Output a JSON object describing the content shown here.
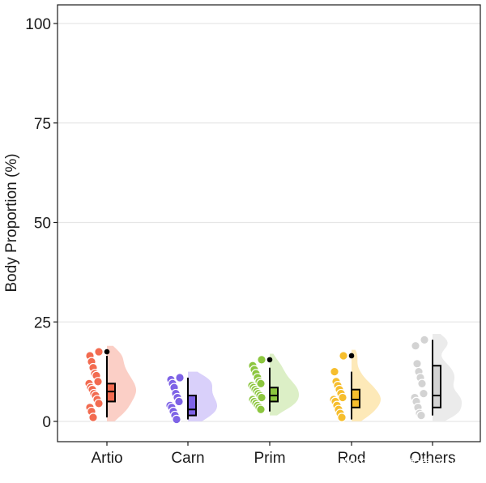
{
  "chart_data": {
    "type": "raincloud",
    "ylabel": "Body Proportion (%)",
    "xlabel": "",
    "title": "",
    "ylim": [
      0,
      100
    ],
    "yticks": [
      0,
      25,
      50,
      75,
      100
    ],
    "grid": "horizontal",
    "legend": "none",
    "categories": [
      "Artio",
      "Carn",
      "Prim",
      "Rod",
      "Others"
    ],
    "series": [
      {
        "category": "Artio",
        "color": "#F26B50",
        "fill": "#FBCFC6",
        "points": [
          17.5,
          16.5,
          15,
          13.5,
          12,
          11.5,
          10,
          9.5,
          8.5,
          8,
          7,
          6.5,
          5.5,
          4.5,
          3.5,
          2.5,
          1
        ],
        "box": {
          "min": 1,
          "q1": 5,
          "median": 7.5,
          "q3": 9.5,
          "max": 16.5
        },
        "outliers": [
          17.5
        ]
      },
      {
        "category": "Carn",
        "color": "#7E63E6",
        "fill": "#D9D0FA",
        "points": [
          11,
          10.5,
          9.5,
          8.5,
          7,
          6,
          5,
          4,
          3.5,
          2.5,
          1.5,
          0.5
        ],
        "box": {
          "min": 0.5,
          "q1": 1.5,
          "median": 3,
          "q3": 6.5,
          "max": 11
        },
        "outliers": []
      },
      {
        "category": "Prim",
        "color": "#8CC63F",
        "fill": "#DCEFC6",
        "points": [
          15.5,
          14,
          13,
          12,
          11,
          10,
          9.5,
          9,
          8.5,
          8,
          7.5,
          7,
          6.5,
          6,
          5.5,
          5,
          4.5,
          4,
          3.5,
          3
        ],
        "box": {
          "min": 2.5,
          "q1": 5,
          "median": 6.5,
          "q3": 8.5,
          "max": 13.5
        },
        "outliers": [
          15.5
        ]
      },
      {
        "category": "Rod",
        "color": "#F6BE2E",
        "fill": "#FDE9B8",
        "points": [
          16.5,
          12.5,
          10,
          9,
          8,
          7,
          6,
          5.5,
          5,
          4,
          3,
          2,
          1
        ],
        "box": {
          "min": 0.5,
          "q1": 3.5,
          "median": 5.5,
          "q3": 8,
          "max": 12.5
        },
        "outliers": [
          16.5
        ]
      },
      {
        "category": "Others",
        "color": "#D3D3D3",
        "fill": "#EBEBEB",
        "points": [
          20.5,
          19,
          14.5,
          12.5,
          11,
          9.5,
          7,
          6,
          5,
          3.5,
          2,
          1.5
        ],
        "box": {
          "min": 1.5,
          "q1": 3.5,
          "median": 6.5,
          "q3": 14,
          "max": 20.5
        },
        "outliers": []
      }
    ]
  },
  "watermark": "知乎 @牧羊的男孩儿"
}
